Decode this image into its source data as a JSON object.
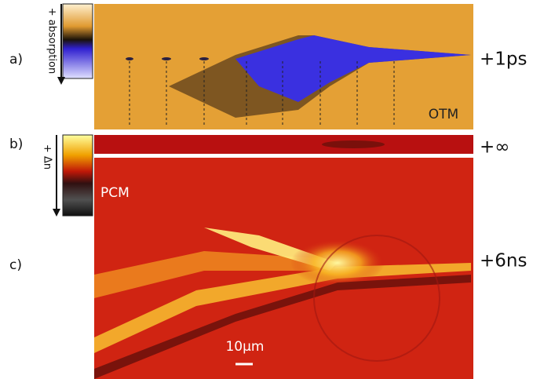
{
  "panels": [
    {
      "label": "a)",
      "colorbar": "+ absorption",
      "image_text": "OTM",
      "time": "+1ps"
    },
    {
      "label": "b)",
      "colorbar": "+ Δn",
      "time": "+∞"
    },
    {
      "label": "c)",
      "image_text": "PCM",
      "time": "+6ns",
      "scale_bar": "10µm"
    }
  ]
}
